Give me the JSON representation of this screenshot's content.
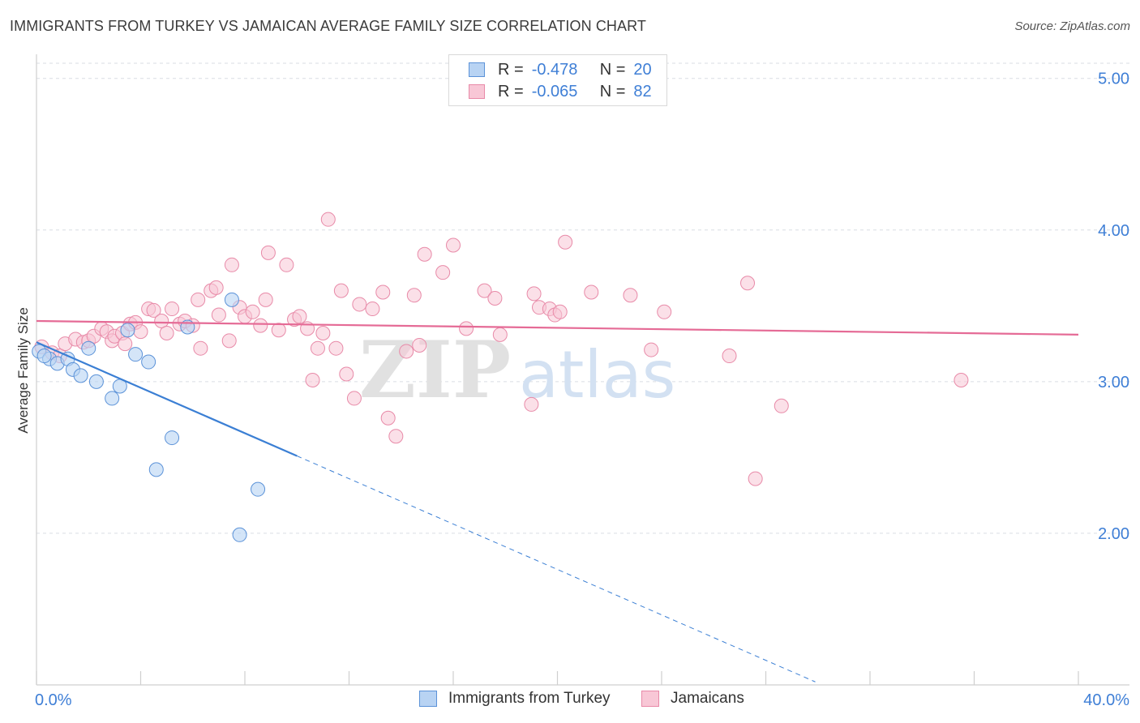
{
  "title": "IMMIGRANTS FROM TURKEY VS JAMAICAN AVERAGE FAMILY SIZE CORRELATION CHART",
  "source": "Source: ZipAtlas.com",
  "watermark": {
    "zip": "ZIP",
    "atlas": "atlas"
  },
  "legend": {
    "turkey": {
      "r_label": "R =",
      "r_value": "-0.478",
      "n_label": "N =",
      "n_value": "20"
    },
    "jamaican": {
      "r_label": "R =",
      "r_value": "-0.065",
      "n_label": "N =",
      "n_value": "82"
    }
  },
  "colors": {
    "turkey_fill": "#b8d3f3",
    "turkey_stroke": "#5b92d8",
    "turkey_line": "#3b7fd4",
    "jamaican_fill": "#f8c7d6",
    "jamaican_stroke": "#e88aa8",
    "jamaican_line": "#e56b96",
    "axis_label": "#3f7fd6",
    "grid": "#d9dde3"
  },
  "chart_data": {
    "type": "scatter",
    "title": "IMMIGRANTS FROM TURKEY VS JAMAICAN AVERAGE FAMILY SIZE CORRELATION CHART",
    "ylabel": "Average Family Size",
    "xlabel": "",
    "xlim": [
      0,
      40
    ],
    "ylim": [
      1.0,
      5.1
    ],
    "x_tick_labels": [
      "0.0%",
      "40.0%"
    ],
    "y_ticks": [
      {
        "value": 2,
        "label": "2.00"
      },
      {
        "value": 3,
        "label": "3.00"
      },
      {
        "value": 4,
        "label": "4.00"
      },
      {
        "value": 5,
        "label": "5.00"
      }
    ],
    "grid": true,
    "series": [
      {
        "name": "Immigrants from Turkey",
        "points": [
          [
            0.1,
            3.2
          ],
          [
            0.5,
            3.15
          ],
          [
            0.8,
            3.12
          ],
          [
            1.2,
            3.15
          ],
          [
            1.4,
            3.08
          ],
          [
            1.7,
            3.04
          ],
          [
            2.0,
            3.22
          ],
          [
            2.3,
            3.0
          ],
          [
            2.9,
            2.89
          ],
          [
            3.2,
            2.97
          ],
          [
            3.5,
            3.34
          ],
          [
            3.8,
            3.18
          ],
          [
            4.3,
            3.13
          ],
          [
            4.6,
            2.42
          ],
          [
            5.2,
            2.63
          ],
          [
            5.8,
            3.36
          ],
          [
            7.5,
            3.54
          ],
          [
            7.8,
            1.99
          ],
          [
            8.5,
            2.29
          ],
          [
            0.3,
            3.17
          ]
        ],
        "trend": {
          "x0": 0,
          "y0": 3.26,
          "x_solid_end": 10.0,
          "y_solid_end": 2.51,
          "x_dash_end": 29.9,
          "y_dash_end": 1.02
        }
      },
      {
        "name": "Jamaicans",
        "points": [
          [
            0.2,
            3.23
          ],
          [
            0.6,
            3.19
          ],
          [
            0.9,
            3.17
          ],
          [
            1.1,
            3.25
          ],
          [
            1.5,
            3.28
          ],
          [
            1.8,
            3.26
          ],
          [
            2.0,
            3.27
          ],
          [
            2.2,
            3.3
          ],
          [
            2.5,
            3.35
          ],
          [
            2.7,
            3.33
          ],
          [
            2.9,
            3.27
          ],
          [
            3.0,
            3.3
          ],
          [
            3.3,
            3.32
          ],
          [
            3.4,
            3.25
          ],
          [
            3.6,
            3.38
          ],
          [
            3.8,
            3.39
          ],
          [
            4.0,
            3.33
          ],
          [
            4.3,
            3.48
          ],
          [
            4.5,
            3.47
          ],
          [
            4.8,
            3.4
          ],
          [
            5.0,
            3.32
          ],
          [
            5.2,
            3.48
          ],
          [
            5.5,
            3.38
          ],
          [
            5.7,
            3.4
          ],
          [
            6.0,
            3.37
          ],
          [
            6.2,
            3.54
          ],
          [
            6.3,
            3.22
          ],
          [
            6.7,
            3.6
          ],
          [
            6.9,
            3.62
          ],
          [
            7.0,
            3.44
          ],
          [
            7.4,
            3.27
          ],
          [
            7.5,
            3.77
          ],
          [
            7.8,
            3.49
          ],
          [
            8.0,
            3.43
          ],
          [
            8.3,
            3.46
          ],
          [
            8.6,
            3.37
          ],
          [
            8.8,
            3.54
          ],
          [
            8.9,
            3.85
          ],
          [
            9.3,
            3.34
          ],
          [
            9.6,
            3.77
          ],
          [
            9.9,
            3.41
          ],
          [
            10.1,
            3.43
          ],
          [
            10.4,
            3.35
          ],
          [
            10.6,
            3.01
          ],
          [
            10.8,
            3.22
          ],
          [
            11.0,
            3.32
          ],
          [
            11.2,
            4.07
          ],
          [
            11.5,
            3.22
          ],
          [
            11.7,
            3.6
          ],
          [
            11.9,
            3.05
          ],
          [
            12.2,
            2.89
          ],
          [
            12.4,
            3.51
          ],
          [
            12.9,
            3.48
          ],
          [
            13.3,
            3.59
          ],
          [
            13.5,
            2.76
          ],
          [
            13.8,
            2.64
          ],
          [
            14.2,
            3.2
          ],
          [
            14.5,
            3.57
          ],
          [
            14.7,
            3.24
          ],
          [
            14.9,
            3.84
          ],
          [
            15.6,
            3.72
          ],
          [
            16.0,
            3.9
          ],
          [
            16.5,
            3.35
          ],
          [
            17.2,
            3.6
          ],
          [
            17.6,
            3.55
          ],
          [
            17.8,
            3.31
          ],
          [
            19.0,
            2.85
          ],
          [
            19.1,
            3.58
          ],
          [
            19.3,
            3.49
          ],
          [
            19.7,
            3.48
          ],
          [
            19.9,
            3.44
          ],
          [
            20.1,
            3.46
          ],
          [
            20.3,
            3.92
          ],
          [
            21.3,
            3.59
          ],
          [
            22.8,
            3.57
          ],
          [
            23.6,
            3.21
          ],
          [
            24.1,
            3.46
          ],
          [
            26.6,
            3.17
          ],
          [
            27.3,
            3.65
          ],
          [
            27.6,
            2.36
          ],
          [
            28.6,
            2.84
          ],
          [
            35.5,
            3.01
          ]
        ],
        "trend": {
          "x0": 0,
          "y0": 3.4,
          "x1": 40,
          "y1": 3.31
        }
      }
    ],
    "legend_placement": "top-center"
  }
}
